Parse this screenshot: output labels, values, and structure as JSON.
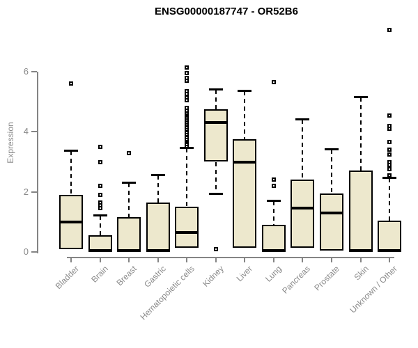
{
  "title": "ENSG00000187747 - OR52B6",
  "chart_data": {
    "type": "boxplot",
    "title": "ENSG00000187747 - OR52B6",
    "xlabel": "",
    "ylabel": "Expression",
    "ylim": [
      0,
      6
    ],
    "yticks": [
      0,
      2,
      4,
      6
    ],
    "grid": false,
    "legend": null,
    "categories": [
      "Bladder",
      "Brain",
      "Breast",
      "Gastric",
      "Hematopoietic cells",
      "Kidney",
      "Liver",
      "Lung",
      "Pancreas",
      "Prostate",
      "Skin",
      "Unknown / Other"
    ],
    "series": [
      {
        "name": "Bladder",
        "low": 0.1,
        "q1": 0.1,
        "median": 1.0,
        "q3": 1.9,
        "high": 3.35,
        "outliers": [
          5.6
        ]
      },
      {
        "name": "Brain",
        "low": 0.02,
        "q1": 0.02,
        "median": 0.05,
        "q3": 0.55,
        "high": 1.2,
        "outliers": [
          3.5,
          3.0,
          2.2,
          1.9,
          1.65,
          1.55,
          1.45
        ]
      },
      {
        "name": "Breast",
        "low": 0.02,
        "q1": 0.02,
        "median": 0.05,
        "q3": 1.15,
        "high": 2.3,
        "outliers": [
          3.3
        ]
      },
      {
        "name": "Gastric",
        "low": 0.02,
        "q1": 0.02,
        "median": 0.05,
        "q3": 1.65,
        "high": 2.55,
        "outliers": []
      },
      {
        "name": "Hematopoietic cells",
        "low": 0.15,
        "q1": 0.15,
        "median": 0.65,
        "q3": 1.5,
        "high": 3.45,
        "outliers": [
          6.15,
          5.95,
          5.8,
          5.7,
          5.35,
          5.25,
          5.15,
          5.05,
          4.8,
          4.7,
          4.62,
          4.54,
          4.46,
          4.38,
          4.3,
          4.22,
          4.14,
          4.06,
          3.98,
          3.9,
          3.82,
          3.74,
          3.66,
          3.58,
          3.5
        ]
      },
      {
        "name": "Kidney",
        "low": 1.95,
        "q1": 3.0,
        "median": 4.3,
        "q3": 4.75,
        "high": 5.4,
        "outliers": [
          0.1
        ]
      },
      {
        "name": "Liver",
        "low": 0.15,
        "q1": 0.15,
        "median": 3.0,
        "q3": 3.75,
        "high": 5.35,
        "outliers": []
      },
      {
        "name": "Lung",
        "low": 0.02,
        "q1": 0.02,
        "median": 0.05,
        "q3": 0.9,
        "high": 1.7,
        "outliers": [
          5.65,
          2.4,
          2.2
        ]
      },
      {
        "name": "Pancreas",
        "low": 0.15,
        "q1": 0.15,
        "median": 1.45,
        "q3": 2.4,
        "high": 4.4,
        "outliers": []
      },
      {
        "name": "Prostate",
        "low": 0.05,
        "q1": 0.05,
        "median": 1.3,
        "q3": 1.95,
        "high": 3.4,
        "outliers": []
      },
      {
        "name": "Skin",
        "low": 0.02,
        "q1": 0.02,
        "median": 0.05,
        "q3": 2.7,
        "high": 5.15,
        "outliers": []
      },
      {
        "name": "Unknown / Other",
        "low": 0.02,
        "q1": 0.02,
        "median": 0.05,
        "q3": 1.05,
        "high": 2.45,
        "outliers": [
          7.4,
          4.55,
          4.2,
          4.1,
          3.65,
          3.4,
          3.25,
          3.0,
          2.9,
          2.75,
          2.55
        ]
      }
    ]
  },
  "colors": {
    "box_fill": "#EDE8CD",
    "box_border": "#000000",
    "median": "#000000",
    "axis": "#848484",
    "muted_text": "#8a8a8a",
    "title_text": "#000000",
    "background": "#ffffff"
  }
}
